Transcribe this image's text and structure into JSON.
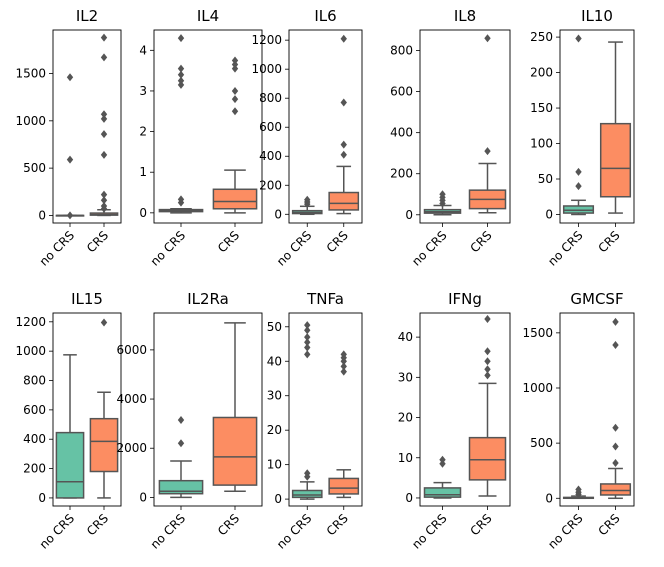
{
  "chart_data": {
    "type": "box",
    "group_labels": [
      "no CRS",
      "CRS"
    ],
    "colors": {
      "no_crs": "#66c2a5",
      "crs": "#fc8d62",
      "line": "#555555",
      "outlier": "#555555"
    },
    "panels": [
      {
        "title": "IL2",
        "ylim": [
          -80,
          1960
        ],
        "yticks": [
          0,
          500,
          1000,
          1500
        ],
        "groups": [
          {
            "name": "no CRS",
            "q1": 0,
            "median": 0,
            "q3": 0,
            "wlo": 0,
            "whi": 0,
            "outliers": [
              0,
              590,
              1460
            ]
          },
          {
            "name": "CRS",
            "q1": 3,
            "median": 10,
            "q3": 25,
            "wlo": 0,
            "whi": 60,
            "outliers": [
              70,
              100,
              160,
              220,
              640,
              860,
              1020,
              1070,
              1670,
              1880
            ]
          }
        ]
      },
      {
        "title": "IL4",
        "ylim": [
          -0.25,
          4.5
        ],
        "yticks": [
          0,
          1,
          2,
          3,
          4
        ],
        "groups": [
          {
            "name": "no CRS",
            "q1": 0.03,
            "median": 0.06,
            "q3": 0.08,
            "wlo": 0.0,
            "whi": 0.1,
            "outliers": [
              0.25,
              0.33,
              3.15,
              3.25,
              3.4,
              3.55,
              4.3
            ]
          },
          {
            "name": "CRS",
            "q1": 0.1,
            "median": 0.28,
            "q3": 0.58,
            "wlo": 0.0,
            "whi": 1.05,
            "outliers": [
              2.5,
              2.8,
              3.0,
              3.55,
              3.65,
              3.75
            ]
          }
        ]
      },
      {
        "title": "IL6",
        "ylim": [
          -60,
          1270
        ],
        "yticks": [
          0,
          200,
          400,
          600,
          800,
          1000,
          1200
        ],
        "groups": [
          {
            "name": "no CRS",
            "q1": 5,
            "median": 12,
            "q3": 25,
            "wlo": 0,
            "whi": 55,
            "outliers": [
              70,
              85,
              100
            ]
          },
          {
            "name": "CRS",
            "q1": 30,
            "median": 75,
            "q3": 150,
            "wlo": 5,
            "whi": 330,
            "outliers": [
              410,
              480,
              770,
              1210
            ]
          }
        ]
      },
      {
        "title": "IL8",
        "ylim": [
          -40,
          900
        ],
        "yticks": [
          0,
          200,
          400,
          600,
          800
        ],
        "groups": [
          {
            "name": "no CRS",
            "q1": 8,
            "median": 15,
            "q3": 25,
            "wlo": 0,
            "whi": 45,
            "outliers": [
              55,
              70,
              85,
              100
            ]
          },
          {
            "name": "CRS",
            "q1": 30,
            "median": 75,
            "q3": 120,
            "wlo": 10,
            "whi": 250,
            "outliers": [
              310,
              860
            ]
          }
        ]
      },
      {
        "title": "IL10",
        "ylim": [
          -12,
          260
        ],
        "yticks": [
          0,
          50,
          100,
          150,
          200,
          250
        ],
        "groups": [
          {
            "name": "no CRS",
            "q1": 2,
            "median": 6,
            "q3": 12,
            "wlo": 0,
            "whi": 20,
            "outliers": [
              40,
              60,
              248
            ]
          },
          {
            "name": "CRS",
            "q1": 25,
            "median": 65,
            "q3": 128,
            "wlo": 2,
            "whi": 243,
            "outliers": []
          }
        ]
      },
      {
        "title": "IL15",
        "ylim": [
          -55,
          1260
        ],
        "yticks": [
          0,
          200,
          400,
          600,
          800,
          1000,
          1200
        ],
        "groups": [
          {
            "name": "no CRS",
            "q1": 0,
            "median": 110,
            "q3": 445,
            "wlo": 0,
            "whi": 975,
            "outliers": []
          },
          {
            "name": "CRS",
            "q1": 180,
            "median": 385,
            "q3": 540,
            "wlo": 0,
            "whi": 720,
            "outliers": [
              1195
            ]
          }
        ]
      },
      {
        "title": "IL2Ra",
        "ylim": [
          -350,
          7500
        ],
        "yticks": [
          0,
          2000,
          4000,
          6000
        ],
        "groups": [
          {
            "name": "no CRS",
            "q1": 150,
            "median": 250,
            "q3": 680,
            "wlo": 0,
            "whi": 1480,
            "outliers": [
              2200,
              3150
            ]
          },
          {
            "name": "CRS",
            "q1": 500,
            "median": 1650,
            "q3": 3250,
            "wlo": 250,
            "whi": 7100,
            "outliers": []
          }
        ]
      },
      {
        "title": "TNFa",
        "ylim": [
          -2,
          54
        ],
        "yticks": [
          0,
          10,
          20,
          30,
          40,
          50
        ],
        "groups": [
          {
            "name": "no CRS",
            "q1": 0.5,
            "median": 1.2,
            "q3": 2.5,
            "wlo": 0,
            "whi": 5,
            "outliers": [
              6.5,
              7.5,
              42,
              44,
              45.5,
              47,
              49,
              50.5
            ]
          },
          {
            "name": "CRS",
            "q1": 1.5,
            "median": 3.2,
            "q3": 6,
            "wlo": 0.5,
            "whi": 8.5,
            "outliers": [
              37,
              38.5,
              40,
              41,
              42
            ]
          }
        ]
      },
      {
        "title": "IFNg",
        "ylim": [
          -2,
          46
        ],
        "yticks": [
          0,
          10,
          20,
          30,
          40
        ],
        "groups": [
          {
            "name": "no CRS",
            "q1": 0.2,
            "median": 0.8,
            "q3": 2.5,
            "wlo": 0,
            "whi": 3.8,
            "outliers": [
              8.5,
              9.5
            ]
          },
          {
            "name": "CRS",
            "q1": 4.5,
            "median": 9.5,
            "q3": 15,
            "wlo": 0.5,
            "whi": 28.5,
            "outliers": [
              30.5,
              32,
              34,
              36.5,
              44.5
            ]
          }
        ]
      },
      {
        "title": "GMCSF",
        "ylim": [
          -70,
          1680
        ],
        "yticks": [
          0,
          500,
          1000,
          1500
        ],
        "groups": [
          {
            "name": "no CRS",
            "q1": 0,
            "median": 3,
            "q3": 8,
            "wlo": 0,
            "whi": 20,
            "outliers": [
              35,
              55,
              80
            ]
          },
          {
            "name": "CRS",
            "q1": 30,
            "median": 70,
            "q3": 130,
            "wlo": 0,
            "whi": 270,
            "outliers": [
              320,
              470,
              640,
              1390,
              1600
            ]
          }
        ]
      }
    ]
  }
}
